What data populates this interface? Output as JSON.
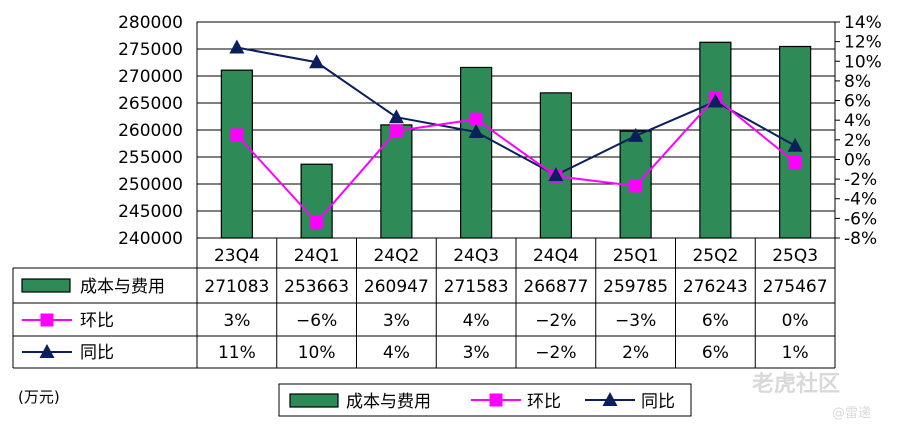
{
  "chart_data": {
    "type": "bar",
    "categories": [
      "23Q4",
      "24Q1",
      "24Q2",
      "24Q3",
      "24Q4",
      "25Q1",
      "25Q2",
      "25Q3"
    ],
    "series": [
      {
        "name": "成本与费用",
        "type": "bar",
        "axis": "left",
        "values": [
          271083,
          253663,
          260947,
          271583,
          266877,
          259785,
          276243,
          275467
        ],
        "labels": [
          "271083",
          "253663",
          "260947",
          "271583",
          "266877",
          "259785",
          "276243",
          "275467"
        ],
        "color": "#2e8b57"
      },
      {
        "name": "环比",
        "type": "line",
        "marker": "square",
        "axis": "right",
        "values": [
          2.5,
          -6.4,
          2.9,
          4.1,
          -1.7,
          -2.7,
          6.3,
          -0.3
        ],
        "labels": [
          "3%",
          "−6%",
          "3%",
          "4%",
          "−2%",
          "−3%",
          "6%",
          "0%"
        ],
        "color": "#ff00ff"
      },
      {
        "name": "同比",
        "type": "line",
        "marker": "triangle",
        "axis": "right",
        "values": [
          11.4,
          9.9,
          4.3,
          2.8,
          -1.6,
          2.4,
          5.9,
          1.4
        ],
        "labels": [
          "11%",
          "10%",
          "4%",
          "3%",
          "−2%",
          "2%",
          "6%",
          "1%"
        ],
        "color": "#0b1f5c"
      }
    ],
    "y_left": {
      "min": 240000,
      "max": 280000,
      "step": 5000,
      "ticks": [
        "240000",
        "245000",
        "250000",
        "255000",
        "260000",
        "265000",
        "270000",
        "275000",
        "280000"
      ]
    },
    "y_right": {
      "min": -8,
      "max": 14,
      "step": 2,
      "ticks": [
        "-8%",
        "-6%",
        "-4%",
        "-2%",
        "0%",
        "2%",
        "4%",
        "6%",
        "8%",
        "10%",
        "12%",
        "14%"
      ]
    },
    "grid": true,
    "legend": "bottom",
    "unit_label": "(万元)"
  },
  "watermark": {
    "text": "老虎社区",
    "sub": "@雷递"
  }
}
